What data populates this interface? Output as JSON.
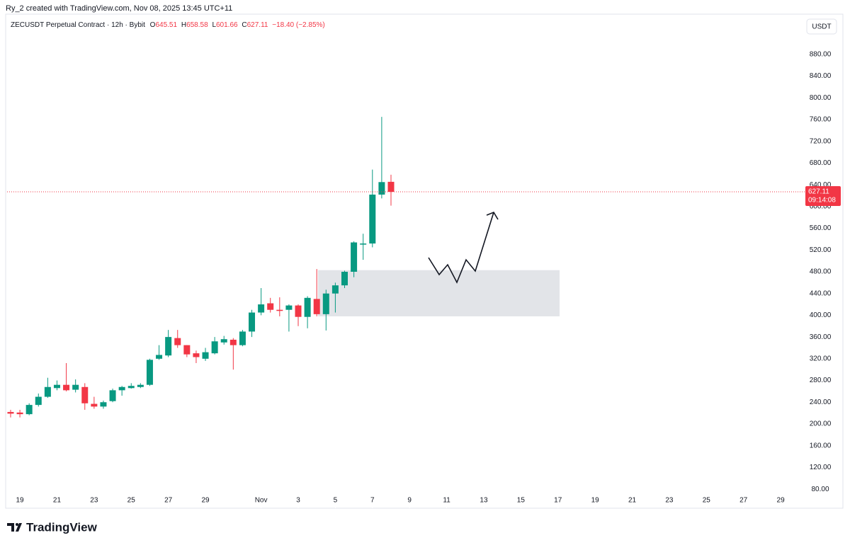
{
  "header": {
    "credit": "Ry_2 created with TradingView.com, Nov 08, 2025 13:45 UTC+11",
    "brand": "TradingView"
  },
  "chart_data": {
    "type": "candlestick",
    "title": "ZECUSDT Perpetual Contract · 12h · Bybit",
    "ohlc_letters": [
      "O",
      "H",
      "L",
      "C"
    ],
    "change_label": "−18.40 (−2.85%)",
    "currency": "USDT",
    "countdown": "09:14:08",
    "up_color": "#089981",
    "down_color": "#f23645",
    "x": [
      18.5,
      19,
      19.5,
      20,
      20.5,
      21,
      21.5,
      22,
      22.5,
      23,
      23.5,
      24,
      24.5,
      25,
      25.5,
      26,
      26.5,
      27,
      27.5,
      28,
      28.5,
      29,
      29.5,
      30,
      30.5,
      31,
      31.5,
      32,
      32.5,
      33,
      33.5,
      34,
      34.5,
      35,
      35.5,
      36,
      36.5,
      37,
      37.5,
      38,
      38.5,
      39
    ],
    "open": [
      222,
      221,
      218,
      235,
      250,
      266,
      272,
      263,
      268,
      237,
      232,
      242,
      262,
      266,
      268,
      272,
      320,
      326,
      358,
      345,
      330,
      320,
      330,
      350,
      355,
      345,
      370,
      405,
      422,
      410,
      410,
      418,
      397,
      430,
      402,
      440,
      455,
      480,
      530,
      532,
      622,
      645.51
    ],
    "high": [
      226,
      226,
      238,
      256,
      285,
      280,
      312,
      282,
      275,
      250,
      243,
      265,
      270,
      275,
      275,
      320,
      345,
      373,
      373,
      345,
      335,
      340,
      360,
      362,
      358,
      373,
      410,
      450,
      432,
      433,
      420,
      420,
      435,
      485,
      447,
      460,
      482,
      536,
      550,
      668,
      765,
      658.58
    ],
    "low": [
      212,
      212,
      216,
      232,
      248,
      262,
      260,
      258,
      226,
      228,
      228,
      240,
      252,
      265,
      266,
      270,
      318,
      323,
      340,
      323,
      312,
      316,
      328,
      346,
      300,
      343,
      360,
      400,
      405,
      398,
      370,
      380,
      376,
      398,
      372,
      405,
      450,
      470,
      502,
      525,
      615,
      601.66
    ],
    "close": [
      219,
      218,
      235,
      250,
      268,
      272,
      262,
      272,
      238,
      232,
      240,
      262,
      268,
      270,
      272,
      318,
      327,
      360,
      345,
      328,
      323,
      332,
      352,
      356,
      345,
      370,
      405,
      420,
      410,
      408,
      418,
      397,
      432,
      402,
      440,
      455,
      480,
      534,
      532,
      622,
      645,
      627.11
    ],
    "zone": [
      398,
      483
    ],
    "xlim": [
      18.31,
      61.18
    ],
    "xticks": [
      {
        "value": 19,
        "label": "19"
      },
      {
        "value": 21,
        "label": "21"
      },
      {
        "value": 23,
        "label": "23"
      },
      {
        "value": 25,
        "label": "25"
      },
      {
        "value": 27,
        "label": "27"
      },
      {
        "value": 29,
        "label": "29"
      },
      {
        "value": 32,
        "label": "Nov"
      },
      {
        "value": 34,
        "label": "3"
      },
      {
        "value": 36,
        "label": "5"
      },
      {
        "value": 38,
        "label": "7"
      },
      {
        "value": 40,
        "label": "9"
      },
      {
        "value": 42,
        "label": "11"
      },
      {
        "value": 44,
        "label": "13"
      },
      {
        "value": 46,
        "label": "15"
      },
      {
        "value": 48,
        "label": "17"
      },
      {
        "value": 50,
        "label": "19"
      },
      {
        "value": 52,
        "label": "21"
      },
      {
        "value": 54,
        "label": "23"
      },
      {
        "value": 56,
        "label": "25"
      },
      {
        "value": 58,
        "label": "27"
      },
      {
        "value": 60,
        "label": "29"
      }
    ],
    "ylim": [
      45,
      954
    ],
    "yticks": [
      {
        "value": 80,
        "label": "80.00"
      },
      {
        "value": 120,
        "label": "120.00"
      },
      {
        "value": 160,
        "label": "160.00"
      },
      {
        "value": 200,
        "label": "200.00"
      },
      {
        "value": 240,
        "label": "240.00"
      },
      {
        "value": 280,
        "label": "280.00"
      },
      {
        "value": 320,
        "label": "320.00"
      },
      {
        "value": 360,
        "label": "360.00"
      },
      {
        "value": 400,
        "label": "400.00"
      },
      {
        "value": 440,
        "label": "440.00"
      },
      {
        "value": 480,
        "label": "480.00"
      },
      {
        "value": 520,
        "label": "520.00"
      },
      {
        "value": 560,
        "label": "560.00"
      },
      {
        "value": 600,
        "label": "600.00"
      },
      {
        "value": 640,
        "label": "640.00"
      },
      {
        "value": 680,
        "label": "680.00"
      },
      {
        "value": 720,
        "label": "720.00"
      },
      {
        "value": 760,
        "label": "760.00"
      },
      {
        "value": 800,
        "label": "800.00"
      },
      {
        "value": 840,
        "label": "840.00"
      },
      {
        "value": 880,
        "label": "880.00"
      }
    ]
  }
}
